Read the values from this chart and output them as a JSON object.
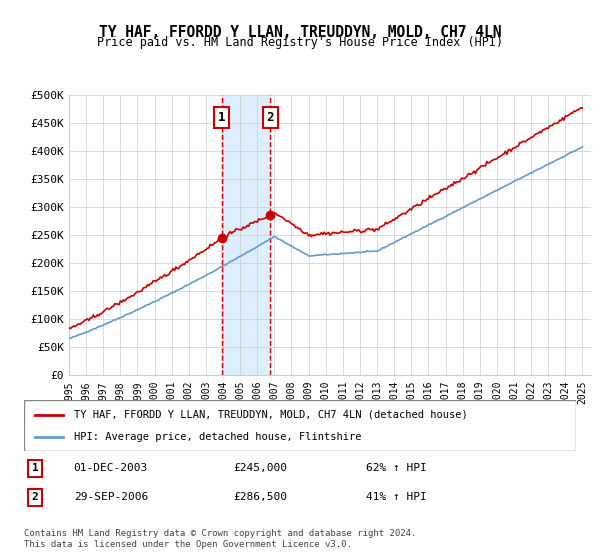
{
  "title": "TY HAF, FFORDD Y LLAN, TREUDDYN, MOLD, CH7 4LN",
  "subtitle": "Price paid vs. HM Land Registry's House Price Index (HPI)",
  "ylabel": "",
  "ylim": [
    0,
    500000
  ],
  "yticks": [
    0,
    50000,
    100000,
    150000,
    200000,
    250000,
    300000,
    350000,
    400000,
    450000,
    500000
  ],
  "ytick_labels": [
    "£0",
    "£50K",
    "£100K",
    "£150K",
    "£200K",
    "£250K",
    "£300K",
    "£350K",
    "£400K",
    "£450K",
    "£500K"
  ],
  "sale1_date": 2003.92,
  "sale1_price": 245000,
  "sale1_label": "01-DEC-2003",
  "sale1_pct": "62% ↑ HPI",
  "sale2_date": 2006.75,
  "sale2_price": 286500,
  "sale2_label": "29-SEP-2006",
  "sale2_pct": "41% ↑ HPI",
  "red_line_color": "#cc0000",
  "blue_line_color": "#6699cc",
  "marker_color": "#cc0000",
  "vline_color": "#dd0000",
  "shade_color": "#ddeeff",
  "grid_color": "#cccccc",
  "legend_red_label": "TY HAF, FFORDD Y LLAN, TREUDDYN, MOLD, CH7 4LN (detached house)",
  "legend_blue_label": "HPI: Average price, detached house, Flintshire",
  "footnote": "Contains HM Land Registry data © Crown copyright and database right 2024.\nThis data is licensed under the Open Government Licence v3.0.",
  "box_color": "#cc0000",
  "num1_box_label": "1",
  "num2_box_label": "2"
}
